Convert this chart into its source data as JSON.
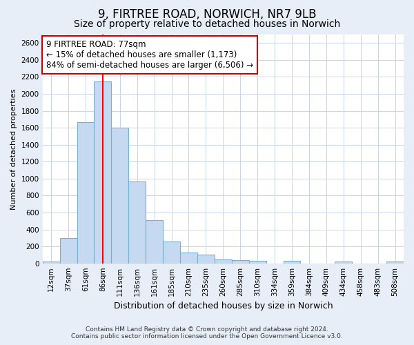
{
  "title1": "9, FIRTREE ROAD, NORWICH, NR7 9LB",
  "title2": "Size of property relative to detached houses in Norwich",
  "xlabel": "Distribution of detached houses by size in Norwich",
  "ylabel": "Number of detached properties",
  "footer1": "Contains HM Land Registry data © Crown copyright and database right 2024.",
  "footer2": "Contains public sector information licensed under the Open Government Licence v3.0.",
  "annotation_title": "9 FIRTREE ROAD: 77sqm",
  "annotation_line1": "← 15% of detached houses are smaller (1,173)",
  "annotation_line2": "84% of semi-detached houses are larger (6,506) →",
  "bar_color": "#c5d9f0",
  "bar_edge_color": "#7bafd4",
  "vline_color": "red",
  "vline_x_index": 3,
  "categories": [
    "12sqm",
    "37sqm",
    "61sqm",
    "86sqm",
    "111sqm",
    "136sqm",
    "161sqm",
    "185sqm",
    "210sqm",
    "235sqm",
    "260sqm",
    "285sqm",
    "310sqm",
    "334sqm",
    "359sqm",
    "384sqm",
    "409sqm",
    "434sqm",
    "458sqm",
    "483sqm",
    "508sqm"
  ],
  "values": [
    25,
    300,
    1670,
    2150,
    1600,
    970,
    510,
    255,
    125,
    100,
    50,
    40,
    30,
    0,
    30,
    0,
    0,
    20,
    0,
    0,
    20
  ],
  "ylim": [
    0,
    2700
  ],
  "yticks": [
    0,
    200,
    400,
    600,
    800,
    1000,
    1200,
    1400,
    1600,
    1800,
    2000,
    2200,
    2400,
    2600
  ],
  "page_bg_color": "#e8eef7",
  "plot_bg_color": "#ffffff",
  "grid_color": "#c8d4e8",
  "title1_fontsize": 12,
  "title2_fontsize": 10,
  "xlabel_fontsize": 9,
  "ylabel_fontsize": 8,
  "tick_fontsize": 7.5,
  "footer_fontsize": 6.5,
  "annotation_box_color": "white",
  "annotation_box_edge": "#cc0000",
  "annotation_fontsize": 8.5
}
